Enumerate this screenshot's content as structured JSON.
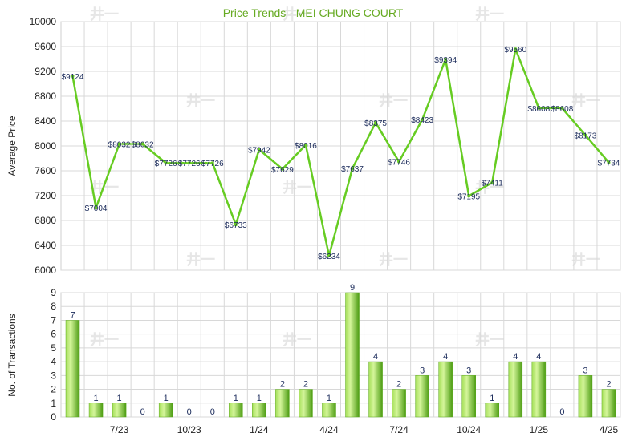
{
  "chart_data": [
    {
      "type": "line",
      "title": "Price Trends - MEI CHUNG COURT",
      "ylabel": "Average Price",
      "ylim": [
        6000,
        10000
      ],
      "yticks": [
        "6000",
        "6400",
        "6800",
        "7200",
        "7600",
        "8000",
        "8400",
        "8800",
        "9200",
        "9600",
        "10000"
      ],
      "grid": true,
      "series": [
        {
          "points": [
            {
              "x": 0,
              "y": 9124,
              "label": "$9124"
            },
            {
              "x": 1,
              "y": 7004,
              "label": "$7004"
            },
            {
              "x": 2,
              "y": 8032,
              "label": "$8032"
            },
            {
              "x": 3,
              "y": 8032,
              "label": "$8032",
              "interp": true
            },
            {
              "x": 4,
              "y": 7726,
              "label": "$7726"
            },
            {
              "x": 5,
              "y": 7726,
              "label": "$7726",
              "interp": true
            },
            {
              "x": 6,
              "y": 7726,
              "label": "$7726",
              "interp": true
            },
            {
              "x": 7,
              "y": 6733,
              "label": "$6733"
            },
            {
              "x": 8,
              "y": 7942,
              "label": "$7942"
            },
            {
              "x": 9,
              "y": 7629,
              "label": "$7629"
            },
            {
              "x": 10,
              "y": 8016,
              "label": "$8016"
            },
            {
              "x": 11,
              "y": 6234,
              "label": "$6234"
            },
            {
              "x": 12,
              "y": 7637,
              "label": "$7637"
            },
            {
              "x": 13,
              "y": 8375,
              "label": "$8375"
            },
            {
              "x": 14,
              "y": 7746,
              "label": "$7746"
            },
            {
              "x": 15,
              "y": 8423,
              "label": "$8423"
            },
            {
              "x": 16,
              "y": 9394,
              "label": "$9394"
            },
            {
              "x": 17,
              "y": 7195,
              "label": "$7195"
            },
            {
              "x": 18,
              "y": 7411,
              "label": "$7411"
            },
            {
              "x": 19,
              "y": 9560,
              "label": "$9560"
            },
            {
              "x": 20,
              "y": 8608,
              "label": "$8608"
            },
            {
              "x": 21,
              "y": 8608,
              "label": "$8608",
              "interp": true
            },
            {
              "x": 22,
              "y": 8173,
              "label": "$8173"
            },
            {
              "x": 23,
              "y": 7734,
              "label": "$7734"
            }
          ]
        }
      ]
    },
    {
      "type": "bar",
      "ylabel": "No. of Transactions",
      "ylim": [
        0,
        9
      ],
      "yticks": [
        "0",
        "1",
        "2",
        "3",
        "4",
        "5",
        "6",
        "7",
        "8",
        "9"
      ],
      "grid": true,
      "categories": [
        "0",
        "1",
        "2",
        "3",
        "4",
        "5",
        "6",
        "7",
        "8",
        "9",
        "10",
        "11",
        "12",
        "13",
        "14",
        "15",
        "16",
        "17",
        "18",
        "19",
        "20",
        "21",
        "22",
        "23"
      ],
      "values": [
        7,
        1,
        1,
        0,
        1,
        0,
        0,
        1,
        1,
        2,
        2,
        1,
        9,
        4,
        2,
        3,
        4,
        3,
        1,
        4,
        4,
        0,
        3,
        2
      ],
      "xtick_labels": [
        {
          "at": 2,
          "label": "7/23"
        },
        {
          "at": 5,
          "label": "10/23"
        },
        {
          "at": 8,
          "label": "1/24"
        },
        {
          "at": 11,
          "label": "4/24"
        },
        {
          "at": 14,
          "label": "7/24"
        },
        {
          "at": 17,
          "label": "10/24"
        },
        {
          "at": 20,
          "label": "1/25"
        },
        {
          "at": 23,
          "label": "4/25"
        }
      ]
    }
  ],
  "colors": {
    "line": "#66cc22",
    "bar_light": "#c8f08a",
    "bar_dark": "#4a9a10",
    "grid": "#d8d8d8",
    "title": "#66aa22"
  }
}
